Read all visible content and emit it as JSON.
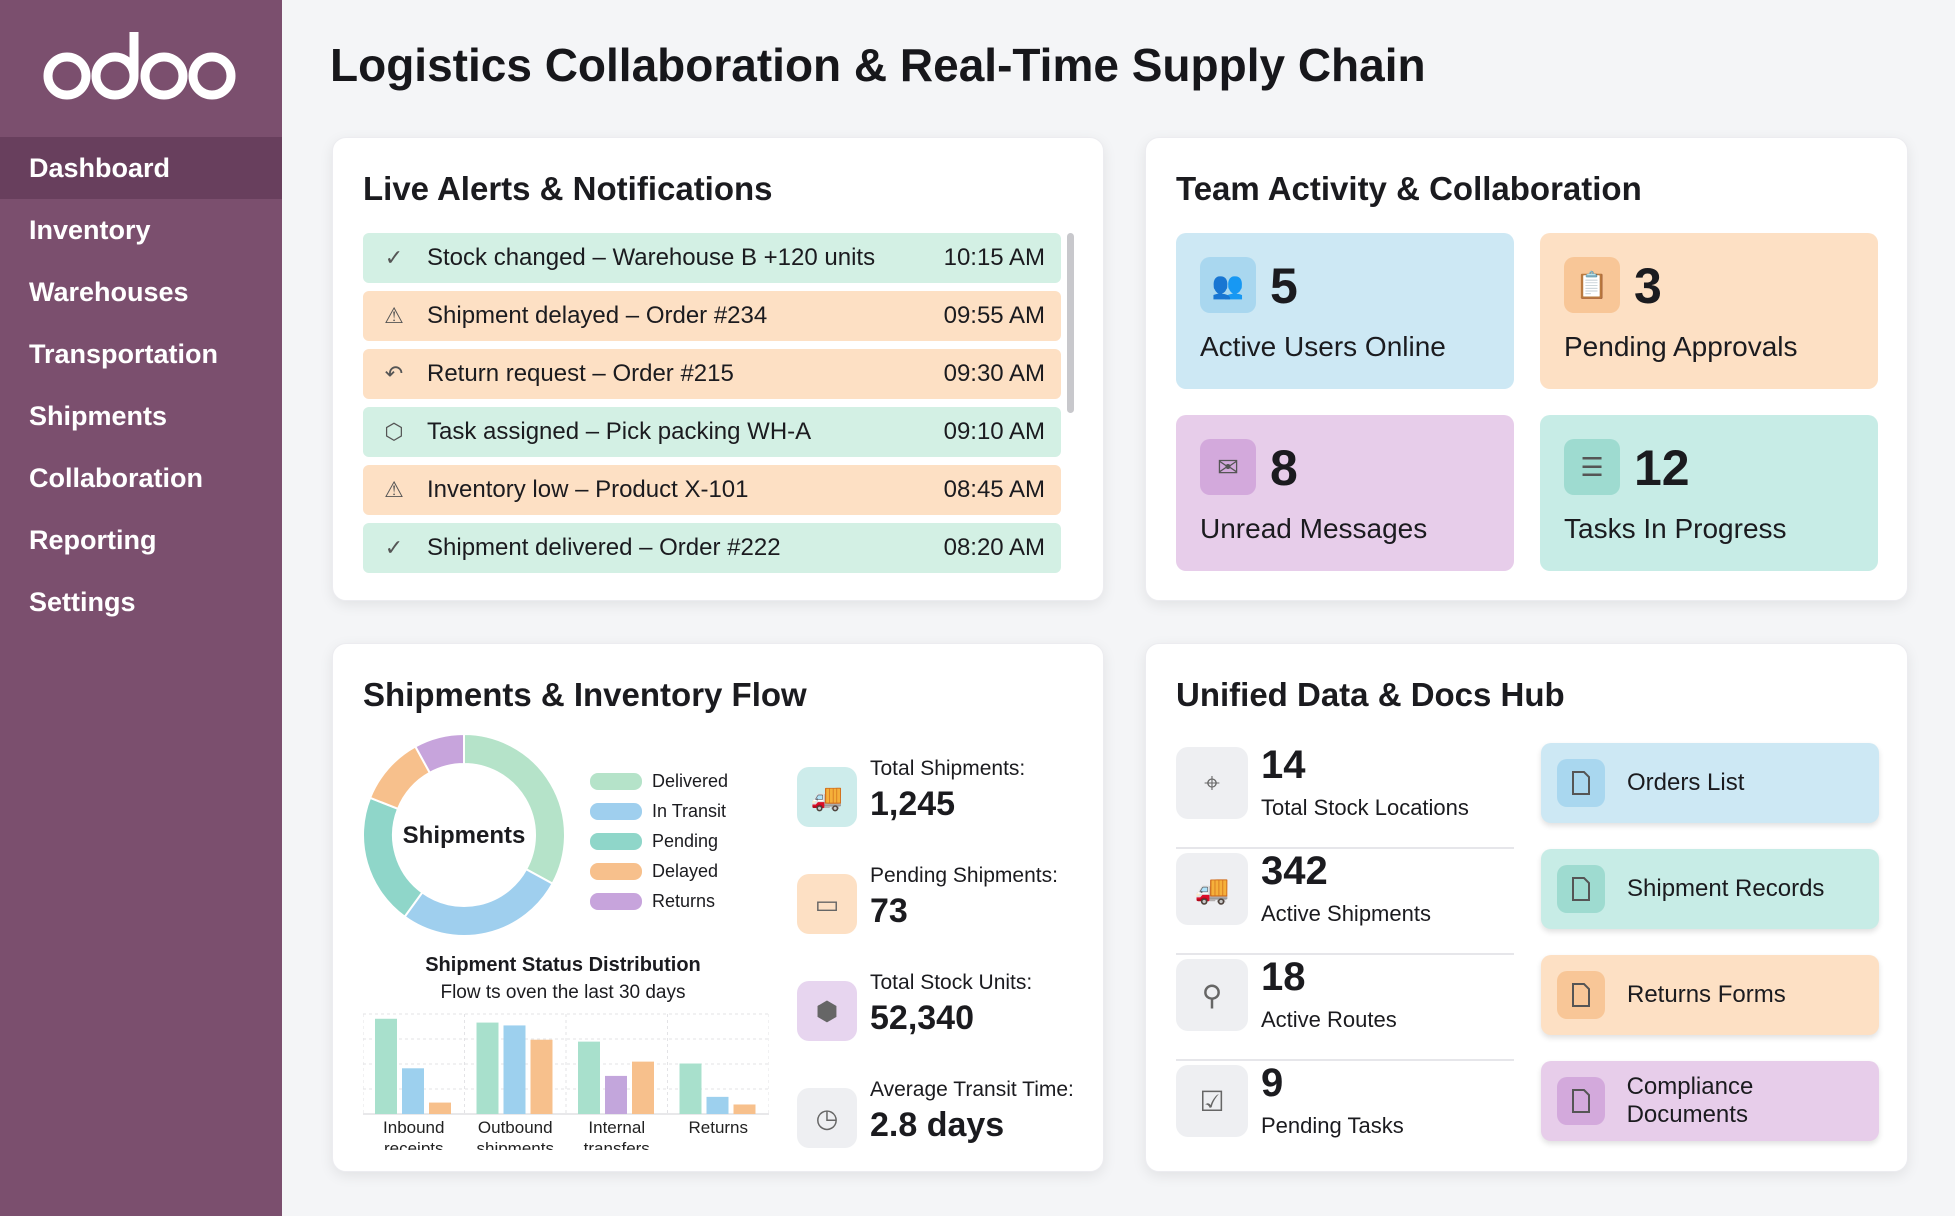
{
  "sidebar": {
    "logo": "odoo",
    "active": "Dashboard",
    "items": [
      "Dashboard",
      "Inventory",
      "Warehouses",
      "Transportation",
      "Shipments",
      "Collaboration",
      "Reporting",
      "Settings"
    ]
  },
  "page_title": "Logistics Collaboration & Real-Time Supply Chain",
  "alerts": {
    "title": "Live Alerts & Notifications",
    "items": [
      {
        "icon": "check-icon",
        "text": "Stock changed – Warehouse B +120 units",
        "time": "10:15 AM",
        "type": "success"
      },
      {
        "icon": "warning-icon",
        "text": "Shipment delayed – Order #234",
        "time": "09:55 AM",
        "type": "warning"
      },
      {
        "icon": "return-icon",
        "text": "Return request – Order #215",
        "time": "09:30 AM",
        "type": "warning"
      },
      {
        "icon": "box-icon",
        "text": "Task assigned – Pick packing WH-A",
        "time": "09:10 AM",
        "type": "success"
      },
      {
        "icon": "warning-icon",
        "text": "Inventory low – Product X-101",
        "time": "08:45 AM",
        "type": "warning"
      },
      {
        "icon": "check-icon",
        "text": "Shipment delivered – Order #222",
        "time": "08:20 AM",
        "type": "success"
      }
    ]
  },
  "team": {
    "title": "Team Activity & Collaboration",
    "tiles": [
      {
        "icon": "users-icon",
        "value": "5",
        "label": "Active Users Online",
        "color": "#cde8f4"
      },
      {
        "icon": "clipboard-icon",
        "value": "3",
        "label": "Pending Approvals",
        "color": "#fde0c4"
      },
      {
        "icon": "mail-icon",
        "value": "8",
        "label": "Unread Messages",
        "color": "#e7cdea"
      },
      {
        "icon": "list-icon",
        "value": "12",
        "label": "Tasks In Progress",
        "color": "#c7ece6"
      }
    ]
  },
  "flow": {
    "title": "Shipments & Inventory Flow",
    "donut_center": "Shipments",
    "kpis": [
      {
        "icon": "truck-icon",
        "label": "Total Shipments:",
        "value": "1,245",
        "color": "#cdeceb"
      },
      {
        "icon": "package-icon",
        "label": "Pending Shipments:",
        "value": "73",
        "color": "#fde0c4"
      },
      {
        "icon": "cube-icon",
        "label": "Total Stock Units:",
        "value": "52,340",
        "color": "#e7d5ef"
      },
      {
        "icon": "clock-icon",
        "label": "Average Transit Time:",
        "value": "2.8 days",
        "color": "#eeeff2"
      }
    ]
  },
  "chart_data": [
    {
      "type": "pie",
      "title": "Shipments",
      "categories": [
        "Delivered",
        "In Transit",
        "Pending",
        "Delayed",
        "Returns"
      ],
      "values": [
        33,
        27,
        21,
        11,
        8
      ],
      "colors": [
        "#b5e3c9",
        "#9fcfee",
        "#8fd6c9",
        "#f7c08c",
        "#c7a4dc"
      ],
      "legend": "right"
    },
    {
      "type": "bar",
      "title": "Shipment Status Distribution",
      "subtitle": "Flow ts oven the last 30 days",
      "categories": [
        "Inbound receipts",
        "Outbound shipments",
        "Internal transfers",
        "Returns"
      ],
      "series": [
        {
          "values": [
            100,
            96,
            76,
            53
          ],
          "colors": [
            "#a8e0cc",
            "#a8e0cc",
            "#a8e0cc",
            "#a8e0cc"
          ]
        },
        {
          "values": [
            48,
            93,
            40,
            18
          ],
          "colors": [
            "#9dd0ee",
            "#9dd0ee",
            "#c3a6dc",
            "#9dd0ee"
          ]
        },
        {
          "values": [
            12,
            78,
            55,
            10
          ],
          "colors": [
            "#f7c08c",
            "#f7c08c",
            "#f7c08c",
            "#f7c08c"
          ]
        }
      ],
      "ylim": [
        0,
        105
      ],
      "grid": true
    }
  ],
  "hub": {
    "title": "Unified Data & Docs Hub",
    "stats": [
      {
        "icon": "location-pin-icon",
        "value": "14",
        "label": "Total Stock Locations"
      },
      {
        "icon": "truck-icon",
        "value": "342",
        "label": "Active Shipments"
      },
      {
        "icon": "route-icon",
        "value": "18",
        "label": "Active Routes"
      },
      {
        "icon": "clipboard-check-icon",
        "value": "9",
        "label": "Pending Tasks"
      }
    ],
    "docs": [
      {
        "label": "Orders List",
        "color": "#cde8f4",
        "icon_bg": "#a9d7ef"
      },
      {
        "label": "Shipment Records",
        "color": "#c7ece6",
        "icon_bg": "#9edbd0"
      },
      {
        "label": "Returns Forms",
        "color": "#fde0c4",
        "icon_bg": "#f8c697"
      },
      {
        "label": "Compliance Documents",
        "color": "#e7cdea",
        "icon_bg": "#d3a9dc"
      }
    ]
  },
  "colors": {
    "sidebar": "#7b4f6e",
    "sidebar_active": "#683f5d",
    "success": "#d3f0e4",
    "warning": "#fde0c4"
  }
}
